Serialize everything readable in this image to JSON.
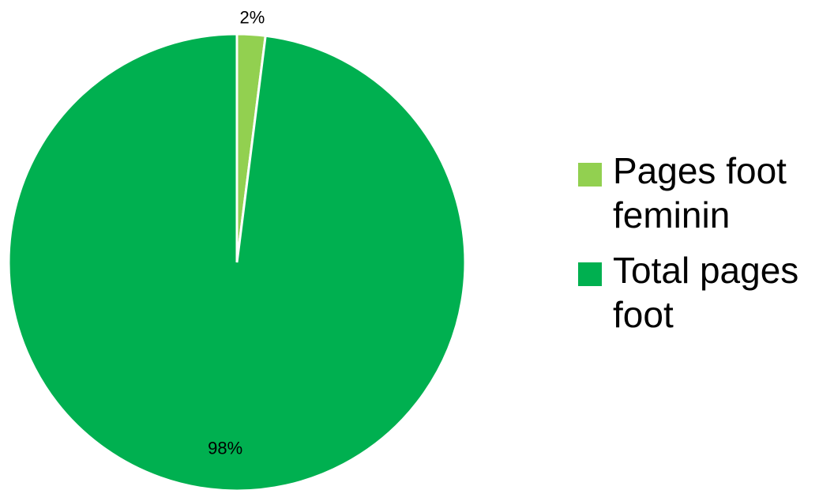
{
  "chart_data": {
    "type": "pie",
    "title": "",
    "slices": [
      {
        "name": "Pages foot feminin",
        "value": 2,
        "label": "2%",
        "color": "#92d050"
      },
      {
        "name": "Total pages foot",
        "value": 98,
        "label": "98%",
        "color": "#00b050"
      }
    ],
    "start_angle_deg": 0,
    "direction": "clockwise",
    "legend_position": "right"
  },
  "legend": {
    "items": [
      {
        "label": "Pages foot feminin",
        "color": "#92d050"
      },
      {
        "label": "Total pages foot",
        "color": "#00b050"
      }
    ]
  }
}
